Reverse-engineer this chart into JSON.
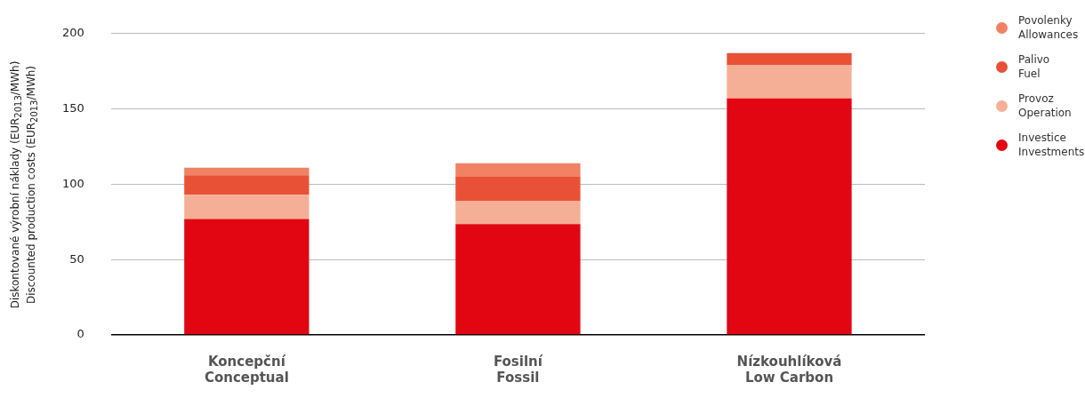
{
  "chart_data": {
    "type": "bar",
    "stacked": true,
    "ylabel": "Diskontované výrobní náklady (EUR$_{2013}$/MWh)\nDiscounted production costs (EUR$_{2013}$/MWh)",
    "categories": [
      "Koncepční\nConceptual",
      "Fosilní\nFossil",
      "Nízkouhlíková\nLow Carbon"
    ],
    "series": [
      {
        "name": "Investice\nInvestments",
        "color": "#e20613",
        "values": [
          77,
          73.5,
          157
        ]
      },
      {
        "name": "Provoz\nOperation",
        "color": "#f5af96",
        "values": [
          16,
          15.5,
          22
        ]
      },
      {
        "name": "Palivo\nFuel",
        "color": "#e95136",
        "values": [
          13,
          16,
          8
        ]
      },
      {
        "name": "Povolenky\nAllowances",
        "color": "#f08263",
        "values": [
          5,
          9,
          0
        ]
      }
    ],
    "ylim": [
      0,
      200
    ],
    "yticks": [
      0,
      50,
      100,
      150,
      200
    ],
    "grid": "y",
    "legend": "right"
  }
}
